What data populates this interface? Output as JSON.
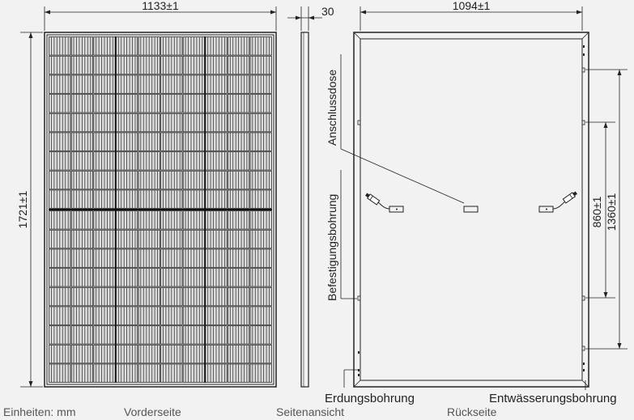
{
  "dimensions": {
    "front_width": "1133±1",
    "front_height": "1721±1",
    "side_depth": "30",
    "back_width": "1094±1",
    "hole_spacing_inner": "860±1",
    "hole_spacing_outer": "1360±1"
  },
  "labels": {
    "junction_box": "Anschlussdose",
    "mounting_hole": "Befestigungsbohrung",
    "grounding_hole": "Erdungsbohrung",
    "drain_hole": "Entwässerungsbohrung"
  },
  "captions": {
    "units": "Einheiten: mm",
    "front": "Vorderseite",
    "side": "Seitenansicht",
    "back": "Rückseite"
  },
  "colors": {
    "background": "#f2f2f2",
    "line": "#222222",
    "cell": "#3a3a3a",
    "caption": "#555555"
  },
  "panel": {
    "cell_columns": 10,
    "cell_rows_per_half": 9,
    "cell_fingers_per_cell": 8
  }
}
